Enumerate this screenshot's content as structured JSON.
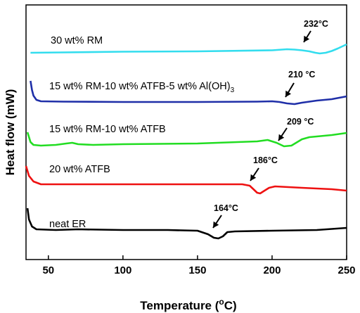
{
  "chart_data": {
    "type": "line",
    "title": "",
    "xlabel": "Temperature (°C)",
    "xlabel_parts": {
      "pre": "Temperature (",
      "sup": "o",
      "post": "C)"
    },
    "ylabel": "Heat flow (mW)",
    "xlim": [
      35,
      250
    ],
    "xticks": [
      50,
      100,
      150,
      200,
      250
    ],
    "y_tick_labels": false,
    "grid": false,
    "legend": "none",
    "series": [
      {
        "label_parts": [
          "30 wt% RM"
        ],
        "color": "#33ddee",
        "annotation": {
          "text": "232°C",
          "x": 232
        },
        "points": [
          [
            38,
            75
          ],
          [
            60,
            74.5
          ],
          [
            100,
            73.5
          ],
          [
            150,
            73
          ],
          [
            200,
            71.5
          ],
          [
            210,
            70
          ],
          [
            215,
            70.5
          ],
          [
            220,
            71.5
          ],
          [
            225,
            73
          ],
          [
            229,
            75
          ],
          [
            232,
            76
          ],
          [
            236,
            75
          ],
          [
            240,
            72.5
          ],
          [
            244,
            69
          ],
          [
            248,
            65
          ],
          [
            250,
            63
          ]
        ]
      },
      {
        "label_parts": [
          "15 wt% RM-10 wt% ATFB-5 wt% Al(OH)",
          "3"
        ],
        "color": "#1f2fa8",
        "annotation": {
          "text": "210 °C",
          "x": 210
        },
        "points": [
          [
            38,
            115
          ],
          [
            39,
            128
          ],
          [
            40,
            136
          ],
          [
            42,
            142
          ],
          [
            45,
            144
          ],
          [
            60,
            144.5
          ],
          [
            100,
            145
          ],
          [
            150,
            145
          ],
          [
            190,
            144.5
          ],
          [
            200,
            144
          ],
          [
            205,
            145
          ],
          [
            210,
            147
          ],
          [
            215,
            148
          ],
          [
            220,
            146
          ],
          [
            230,
            143
          ],
          [
            240,
            141
          ],
          [
            250,
            137
          ]
        ]
      },
      {
        "label_parts": [
          "15 wt% RM-10 wt% ATFB"
        ],
        "color": "#22dd22",
        "annotation": {
          "text": "209 °C",
          "x": 209
        },
        "points": [
          [
            36,
            188
          ],
          [
            38,
            202
          ],
          [
            40,
            206
          ],
          [
            45,
            207
          ],
          [
            55,
            206
          ],
          [
            62,
            204
          ],
          [
            66,
            203
          ],
          [
            70,
            205
          ],
          [
            80,
            206
          ],
          [
            100,
            205
          ],
          [
            150,
            204
          ],
          [
            190,
            201
          ],
          [
            197,
            199
          ],
          [
            203,
            203
          ],
          [
            208,
            208
          ],
          [
            213,
            207
          ],
          [
            220,
            198
          ],
          [
            225,
            195
          ],
          [
            240,
            192
          ],
          [
            250,
            189
          ]
        ]
      },
      {
        "label_parts": [
          "20 wt% ATFB"
        ],
        "color": "#ee1111",
        "annotation": {
          "text": "186°C",
          "x": 186
        },
        "points": [
          [
            35,
            236
          ],
          [
            37,
            250
          ],
          [
            40,
            258
          ],
          [
            45,
            262
          ],
          [
            60,
            262
          ],
          [
            100,
            262
          ],
          [
            150,
            262
          ],
          [
            180,
            262
          ],
          [
            185,
            264
          ],
          [
            188,
            270
          ],
          [
            190,
            274
          ],
          [
            192,
            275
          ],
          [
            195,
            271
          ],
          [
            198,
            267
          ],
          [
            202,
            265
          ],
          [
            220,
            267
          ],
          [
            240,
            269
          ],
          [
            250,
            271
          ]
        ]
      },
      {
        "label_parts": [
          "neat ER"
        ],
        "color": "#000000",
        "annotation": {
          "text": "164°C",
          "x": 164
        },
        "points": [
          [
            36,
            296
          ],
          [
            37,
            312
          ],
          [
            39,
            322
          ],
          [
            42,
            326
          ],
          [
            55,
            327
          ],
          [
            70,
            326
          ],
          [
            100,
            327
          ],
          [
            130,
            327
          ],
          [
            150,
            328
          ],
          [
            157,
            333
          ],
          [
            161,
            338
          ],
          [
            164,
            339
          ],
          [
            167,
            336
          ],
          [
            170,
            330
          ],
          [
            175,
            329
          ],
          [
            200,
            328
          ],
          [
            230,
            327
          ],
          [
            250,
            324
          ]
        ]
      }
    ]
  }
}
